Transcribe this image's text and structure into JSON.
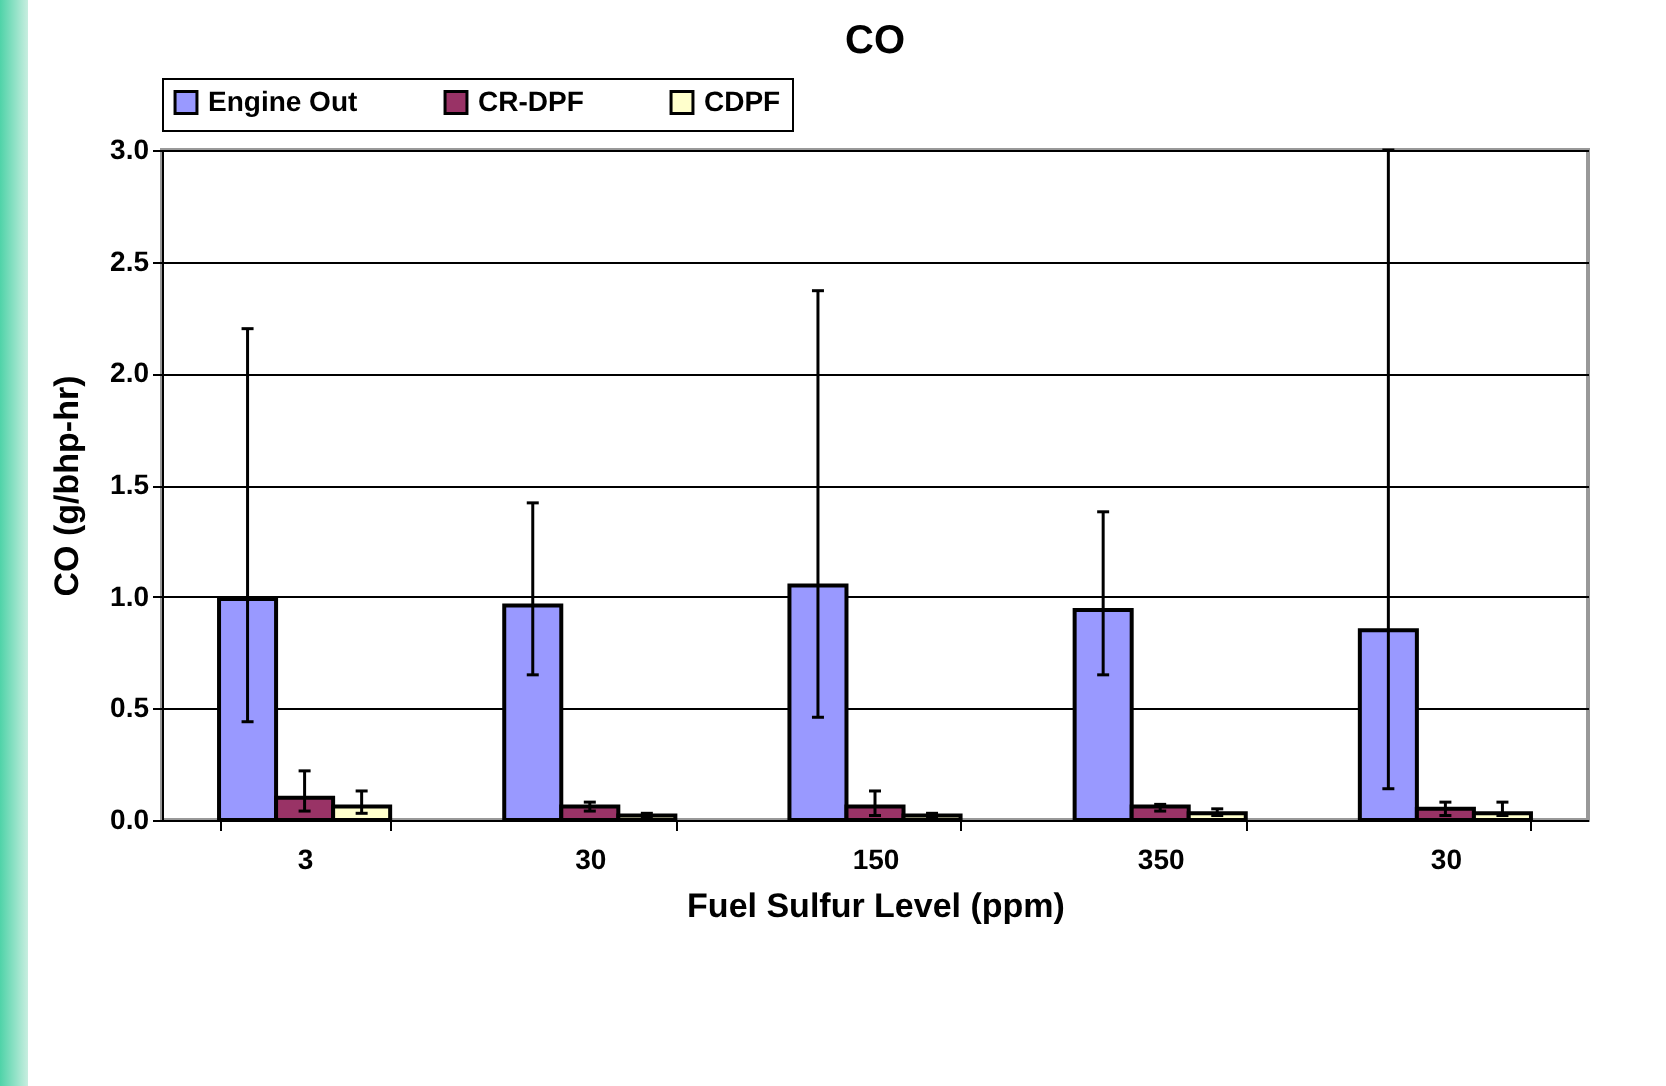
{
  "chart_data": {
    "type": "bar",
    "title": "CO",
    "xlabel": "Fuel Sulfur Level (ppm)",
    "ylabel": "CO (g/bhp-hr)",
    "categories": [
      "3",
      "30",
      "150",
      "350",
      "30"
    ],
    "series": [
      {
        "name": "Engine Out",
        "color": "#9999ff",
        "values": [
          0.99,
          0.96,
          1.05,
          0.94,
          0.85
        ],
        "errors": [
          [
            0.44,
            2.2
          ],
          [
            0.65,
            1.42
          ],
          [
            0.46,
            2.37
          ],
          [
            0.65,
            1.38
          ],
          [
            0.14,
            3.0
          ]
        ]
      },
      {
        "name": "CR-DPF",
        "color": "#993366",
        "values": [
          0.1,
          0.06,
          0.06,
          0.06,
          0.05
        ],
        "errors": [
          [
            0.04,
            0.22
          ],
          [
            0.04,
            0.08
          ],
          [
            0.02,
            0.13
          ],
          [
            0.04,
            0.07
          ],
          [
            0.02,
            0.08
          ]
        ]
      },
      {
        "name": "CDPF",
        "color": "#ffffcc",
        "values": [
          0.06,
          0.02,
          0.02,
          0.03,
          0.03
        ],
        "errors": [
          [
            0.03,
            0.13
          ],
          [
            0.01,
            0.03
          ],
          [
            0.01,
            0.03
          ],
          [
            0.02,
            0.05
          ],
          [
            0.02,
            0.08
          ]
        ]
      }
    ],
    "ylim": [
      0,
      3.0
    ],
    "yticks": [
      {
        "value": 0,
        "label": "0.0"
      },
      {
        "value": 0.5,
        "label": "0.5"
      },
      {
        "value": 1,
        "label": "1.0"
      },
      {
        "value": 1.5,
        "label": "1.5"
      },
      {
        "value": 2,
        "label": "2.0"
      },
      {
        "value": 2.5,
        "label": "2.5"
      },
      {
        "value": 3,
        "label": "3.0"
      }
    ],
    "grid": "y",
    "legend": "top"
  }
}
